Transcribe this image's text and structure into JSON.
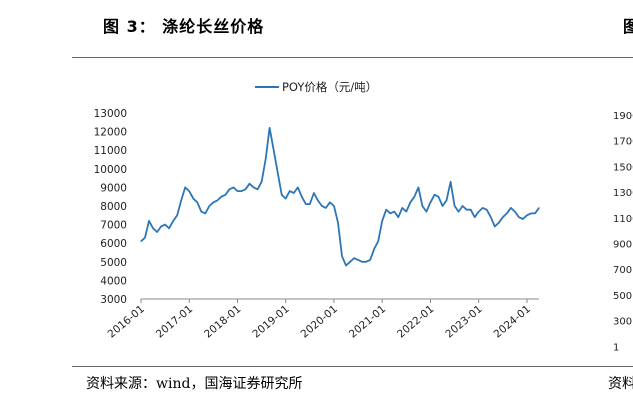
{
  "figure": {
    "title": "图 3：  涤纶长丝价格",
    "source": "资料来源：wind，国海证券研究所",
    "right_panel": {
      "title_fragment": "图",
      "source_fragment": "资料",
      "y_ticks": [
        "1900",
        "1700",
        "1500",
        "1300",
        "1100",
        "900",
        "700",
        "500",
        "300",
        "1"
      ]
    }
  },
  "chart_data": {
    "type": "line",
    "title": "",
    "xlabel": "",
    "ylabel": "",
    "ylim": [
      3000,
      13000
    ],
    "y_ticks": [
      3000,
      4000,
      5000,
      6000,
      7000,
      8000,
      9000,
      10000,
      11000,
      12000,
      13000
    ],
    "x_ticks": [
      "2016-01",
      "2017-01",
      "2018-01",
      "2019-01",
      "2020-01",
      "2021-01",
      "2022-01",
      "2023-01",
      "2024-01"
    ],
    "xlim": [
      "2016-01",
      "2024-04"
    ],
    "legend": "top-center",
    "grid": false,
    "color": "#2e75b6",
    "series": [
      {
        "name": "POY价格（元/吨）",
        "x": [
          "2016-01",
          "2016-02",
          "2016-03",
          "2016-04",
          "2016-05",
          "2016-06",
          "2016-07",
          "2016-08",
          "2016-09",
          "2016-10",
          "2016-11",
          "2016-12",
          "2017-01",
          "2017-02",
          "2017-03",
          "2017-04",
          "2017-05",
          "2017-06",
          "2017-07",
          "2017-08",
          "2017-09",
          "2017-10",
          "2017-11",
          "2017-12",
          "2018-01",
          "2018-02",
          "2018-03",
          "2018-04",
          "2018-05",
          "2018-06",
          "2018-07",
          "2018-08",
          "2018-09",
          "2018-10",
          "2018-11",
          "2018-12",
          "2019-01",
          "2019-02",
          "2019-03",
          "2019-04",
          "2019-05",
          "2019-06",
          "2019-07",
          "2019-08",
          "2019-09",
          "2019-10",
          "2019-11",
          "2019-12",
          "2020-01",
          "2020-02",
          "2020-03",
          "2020-04",
          "2020-05",
          "2020-06",
          "2020-07",
          "2020-08",
          "2020-09",
          "2020-10",
          "2020-11",
          "2020-12",
          "2021-01",
          "2021-02",
          "2021-03",
          "2021-04",
          "2021-05",
          "2021-06",
          "2021-07",
          "2021-08",
          "2021-09",
          "2021-10",
          "2021-11",
          "2021-12",
          "2022-01",
          "2022-02",
          "2022-03",
          "2022-04",
          "2022-05",
          "2022-06",
          "2022-07",
          "2022-08",
          "2022-09",
          "2022-10",
          "2022-11",
          "2022-12",
          "2023-01",
          "2023-02",
          "2023-03",
          "2023-04",
          "2023-05",
          "2023-06",
          "2023-07",
          "2023-08",
          "2023-09",
          "2023-10",
          "2023-11",
          "2023-12",
          "2024-01",
          "2024-02",
          "2024-03",
          "2024-04"
        ],
        "values": [
          6100,
          6300,
          7200,
          6800,
          6600,
          6900,
          7000,
          6800,
          7200,
          7500,
          8300,
          9000,
          8800,
          8400,
          8200,
          7700,
          7600,
          8000,
          8200,
          8300,
          8500,
          8600,
          8900,
          9000,
          8800,
          8800,
          8900,
          9200,
          9000,
          8900,
          9300,
          10500,
          12200,
          11000,
          9800,
          8600,
          8400,
          8800,
          8700,
          9000,
          8500,
          8100,
          8100,
          8700,
          8300,
          8000,
          7900,
          8200,
          8000,
          7100,
          5300,
          4800,
          5000,
          5200,
          5100,
          5000,
          5000,
          5100,
          5700,
          6100,
          7200,
          7800,
          7600,
          7700,
          7400,
          7900,
          7700,
          8200,
          8500,
          9000,
          8000,
          7700,
          8200,
          8600,
          8500,
          8000,
          8300,
          9300,
          8000,
          7700,
          8000,
          7800,
          7800,
          7400,
          7700,
          7900,
          7800,
          7400,
          6900,
          7100,
          7400,
          7600,
          7900,
          7700,
          7400,
          7300,
          7500,
          7600,
          7600,
          7900
        ]
      }
    ]
  }
}
